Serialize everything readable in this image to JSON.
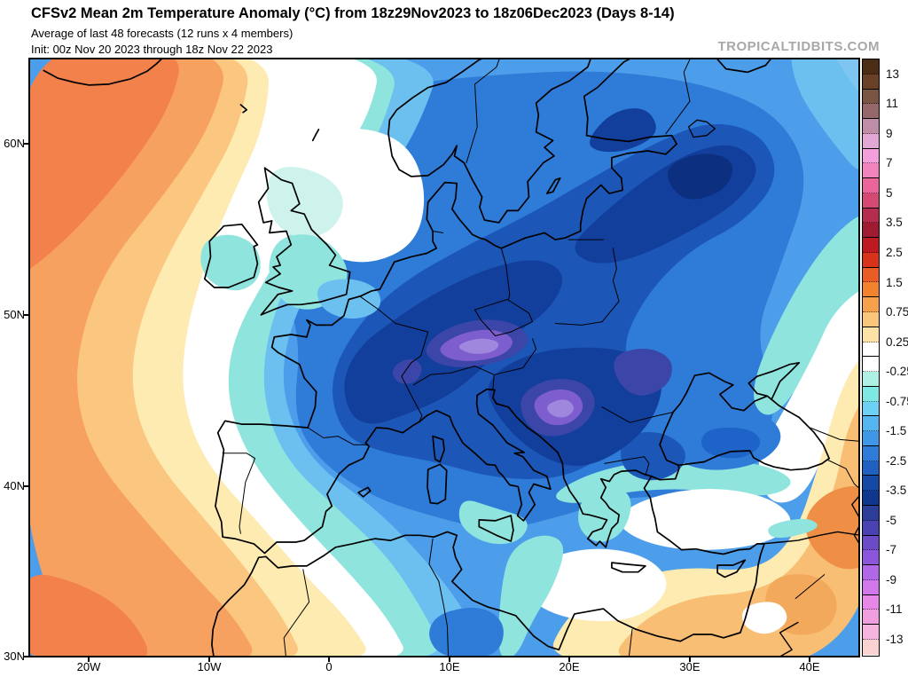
{
  "header": {
    "title": "CFSv2 Mean 2m Temperature Anomaly (°C) from 18z29Nov2023 to 18z06Dec2023 (Days 8-14)",
    "subtitle": "Average of last 48 forecasts (12 runs x 4 members)",
    "init_line": "Init: 00z Nov 20 2023 through 18z Nov 22 2023"
  },
  "watermark": "TROPICALTIDBITS.COM",
  "axes": {
    "lat_labels": [
      "60N",
      "50N",
      "40N",
      "30N"
    ],
    "lon_labels": [
      "20W",
      "10W",
      "0",
      "10E",
      "20E",
      "30E",
      "40E"
    ]
  },
  "colorbar": {
    "unit": "°C",
    "tick_labels": [
      "13",
      "11",
      "9",
      "7",
      "5",
      "3.5",
      "2.5",
      "1.5",
      "0.75",
      "0.25",
      "-0.25",
      "-0.75",
      "-1.5",
      "-2.5",
      "-3.5",
      "-5",
      "-7",
      "-9",
      "-11",
      "-13"
    ],
    "cell_colors": [
      "#4A2D14",
      "#6A4026",
      "#7A5544",
      "#96686B",
      "#C08DA8",
      "#E2A7D4",
      "#F29FDC",
      "#F383BE",
      "#E9659A",
      "#D44A72",
      "#B52D4E",
      "#9E1B32",
      "#BC1A20",
      "#D7331B",
      "#E95C24",
      "#F3822F",
      "#F7A04C",
      "#FAC67C",
      "#FCE2A5",
      "#FFFFFF",
      "#FFFFFF",
      "#AEF0E4",
      "#7DE9E2",
      "#6CD1F4",
      "#54B5F0",
      "#3F97E8",
      "#2F7CD8",
      "#2060C0",
      "#1648A6",
      "#0F378E",
      "#2D3D9A",
      "#4A41B2",
      "#6B4CC6",
      "#8C56DC",
      "#B266E8",
      "#D276EC",
      "#E788E8",
      "#F09EDE",
      "#F6B5DE",
      "#FAD2D2"
    ]
  },
  "palette": {
    "deep_orange": "#F2814B",
    "orange": "#F7A161",
    "light_orange": "#FBC67F",
    "pale_yellow": "#FDEBB2",
    "white": "#FFFFFF",
    "pale_cyan": "#CDF3EC",
    "cyan": "#8FE5DE",
    "light_blue": "#6CC0F0",
    "lighter_blue": "#7FC5F2",
    "blue": "#4D9EEA",
    "mid_blue": "#2E7CD8",
    "deep_blue": "#1C57B8",
    "navy": "#123E9C",
    "dark_navy": "#0D2F80",
    "indigo": "#3C46A8",
    "purple": "#7E5ECE",
    "light_purple": "#9E87DC",
    "sea_core": "#1E63C8",
    "orange_se": "#F8BE74",
    "orange_mid_se": "#F3A95C",
    "orange_deep_se": "#EF8F45"
  }
}
